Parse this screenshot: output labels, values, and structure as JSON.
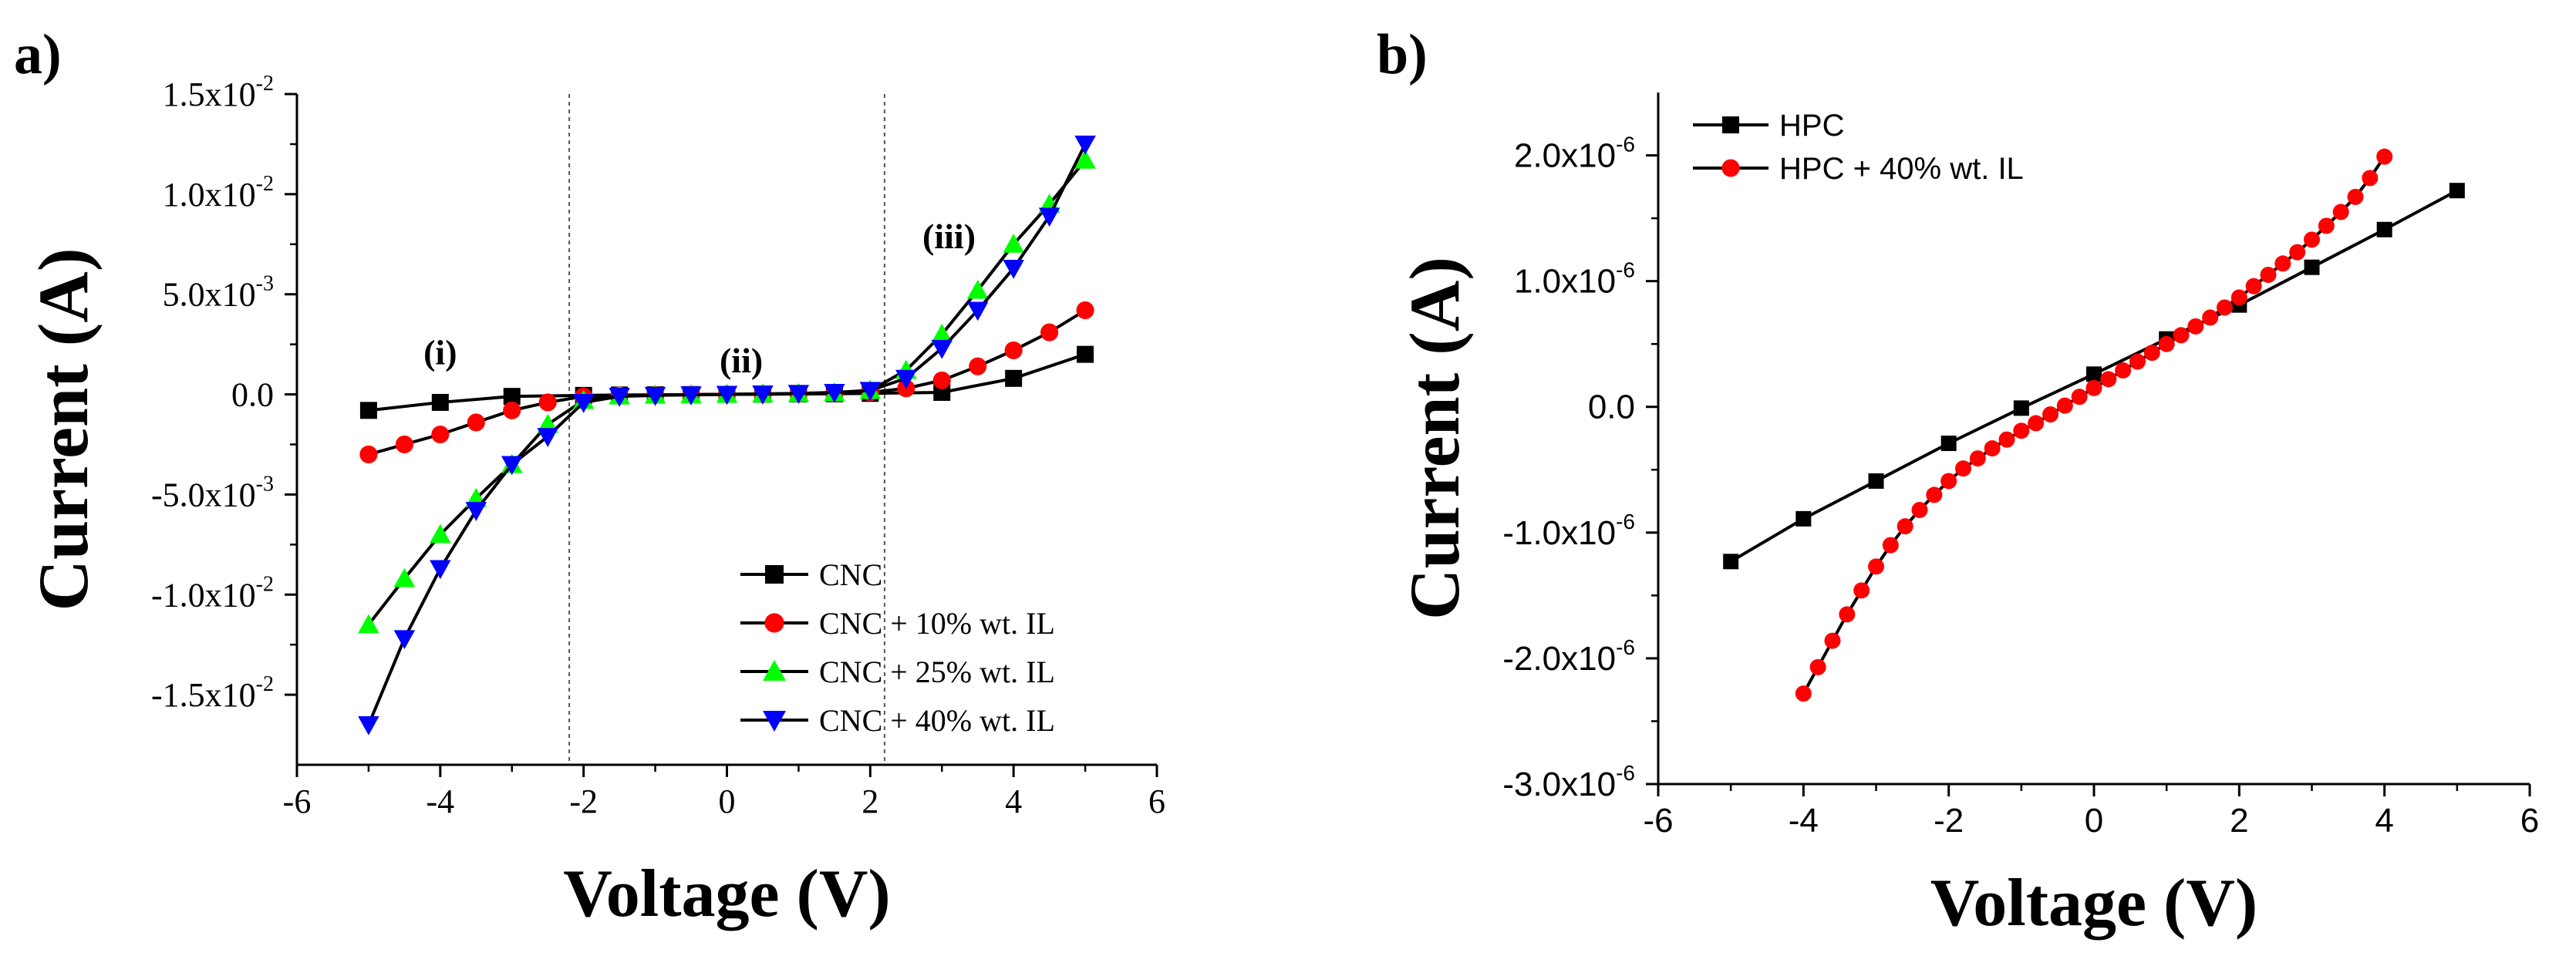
{
  "chart_data": [
    {
      "type": "line",
      "panel_label": "a)",
      "xlabel": "Voltage (V)",
      "ylabel": "Current (A)",
      "xlim": [
        -6,
        6
      ],
      "ylim": [
        -0.0185,
        0.015
      ],
      "xticks": [
        -6,
        -4,
        -2,
        0,
        2,
        4,
        6
      ],
      "xtick_labels": [
        "-6",
        "-4",
        "-2",
        "0",
        "2",
        "4",
        "6"
      ],
      "yticks": [
        -0.015,
        -0.01,
        -0.005,
        0.0,
        0.005,
        0.01,
        0.015
      ],
      "ytick_labels": [
        {
          "base": "-1.5x10",
          "exp": "-2"
        },
        {
          "base": "-1.0x10",
          "exp": "-2"
        },
        {
          "base": "-5.0x10",
          "exp": "-3"
        },
        {
          "base": "0.0",
          "exp": ""
        },
        {
          "base": "5.0x10",
          "exp": "-3"
        },
        {
          "base": "1.0x10",
          "exp": "-2"
        },
        {
          "base": "1.5x10",
          "exp": "-2"
        }
      ],
      "grid": false,
      "legend_position": "bottom-right",
      "vlines": [
        -2.2,
        2.2
      ],
      "annotations": [
        {
          "text": "(i)",
          "x": -4.0,
          "y": 0.0015
        },
        {
          "text": "(ii)",
          "x": 0.2,
          "y": 0.0011
        },
        {
          "text": "(iii)",
          "x": 3.1,
          "y": 0.0073
        }
      ],
      "series": [
        {
          "name": "CNC",
          "color": "#000000",
          "marker": "square",
          "x": [
            -5,
            -4,
            -3,
            -2,
            -1.5,
            -1,
            -0.5,
            0,
            0.5,
            1,
            1.5,
            2,
            3,
            4,
            5
          ],
          "y": [
            -0.0008,
            -0.0004,
            -0.0001,
            -5e-05,
            -3e-05,
            -2e-05,
            -1e-05,
            0,
            1e-05,
            2e-05,
            3e-05,
            5e-05,
            0.0001,
            0.0008,
            0.002
          ]
        },
        {
          "name": "CNC + 10% wt. IL",
          "color": "#ff0000",
          "marker": "circle",
          "x": [
            -5,
            -4.5,
            -4,
            -3.5,
            -3,
            -2.5,
            -2,
            -1.5,
            -1,
            -0.5,
            0,
            0.5,
            1,
            1.5,
            2,
            2.5,
            3,
            3.5,
            4,
            4.5,
            5
          ],
          "y": [
            -0.003,
            -0.0025,
            -0.002,
            -0.0014,
            -0.0008,
            -0.0004,
            -0.0001,
            -5e-05,
            -3e-05,
            -1e-05,
            0,
            1e-05,
            3e-05,
            5e-05,
            0.0001,
            0.0003,
            0.0007,
            0.0014,
            0.0022,
            0.0031,
            0.0042
          ]
        },
        {
          "name": "CNC + 25% wt. IL",
          "color": "#00ff00",
          "marker": "triangle-up",
          "x": [
            -5,
            -4.5,
            -4,
            -3.5,
            -3,
            -2.5,
            -2,
            -1.5,
            -1,
            -0.5,
            0,
            0.5,
            1,
            1.5,
            2,
            2.5,
            3,
            3.5,
            4,
            4.5,
            5
          ],
          "y": [
            -0.0115,
            -0.0092,
            -0.007,
            -0.0052,
            -0.0035,
            -0.0015,
            -0.0003,
            -8e-05,
            -4e-05,
            -2e-05,
            0,
            2e-05,
            4e-05,
            8e-05,
            0.0002,
            0.0012,
            0.003,
            0.0052,
            0.0075,
            0.0095,
            0.0117
          ]
        },
        {
          "name": "CNC + 40% wt. IL",
          "color": "#0000ff",
          "marker": "triangle-down",
          "x": [
            -5,
            -4.5,
            -4,
            -3.5,
            -3,
            -2.5,
            -2,
            -1.5,
            -1,
            -0.5,
            0,
            0.5,
            1,
            1.5,
            2,
            2.5,
            3,
            3.5,
            4,
            4.5,
            5
          ],
          "y": [
            -0.0165,
            -0.0122,
            -0.0087,
            -0.0058,
            -0.0035,
            -0.0021,
            -0.0004,
            -0.0001,
            -5e-05,
            -2e-05,
            0,
            2e-05,
            5e-05,
            0.0001,
            0.0002,
            0.0008,
            0.0023,
            0.0042,
            0.0063,
            0.0089,
            0.0125
          ]
        }
      ]
    },
    {
      "type": "line",
      "panel_label": "b)",
      "xlabel": "Voltage (V)",
      "ylabel": "Current (A)",
      "xlim": [
        -6,
        6
      ],
      "ylim": [
        -3e-06,
        2.5e-06
      ],
      "xticks": [
        -6,
        -4,
        -2,
        0,
        2,
        4,
        6
      ],
      "xtick_labels": [
        "-6",
        "-4",
        "-2",
        "0",
        "2",
        "4",
        "6"
      ],
      "yticks": [
        -3e-06,
        -2e-06,
        -1e-06,
        0.0,
        1e-06,
        2e-06
      ],
      "ytick_labels": [
        {
          "base": "-3.0x10",
          "exp": "-6"
        },
        {
          "base": "-2.0x10",
          "exp": "-6"
        },
        {
          "base": "-1.0x10",
          "exp": "-6"
        },
        {
          "base": "0.0",
          "exp": ""
        },
        {
          "base": "1.0x10",
          "exp": "-6"
        },
        {
          "base": "2.0x10",
          "exp": "-6"
        }
      ],
      "grid": false,
      "legend_position": "top-left",
      "series": [
        {
          "name": "HPC",
          "color": "#000000",
          "marker": "square",
          "x": [
            -5,
            -4,
            -3,
            -2,
            -1,
            0,
            1,
            2,
            3,
            4,
            5
          ],
          "y": [
            -1.23e-06,
            -8.9e-07,
            -5.9e-07,
            -2.9e-07,
            -1e-08,
            2.6e-07,
            5.4e-07,
            8.1e-07,
            1.11e-06,
            1.41e-06,
            1.72e-06
          ]
        },
        {
          "name": "HPC + 40% wt. IL",
          "color": "#ff0000",
          "marker": "circle",
          "x": [
            -4.0,
            -3.8,
            -3.6,
            -3.4,
            -3.2,
            -3.0,
            -2.8,
            -2.6,
            -2.4,
            -2.2,
            -2.0,
            -1.8,
            -1.6,
            -1.4,
            -1.2,
            -1.0,
            -0.8,
            -0.6,
            -0.4,
            -0.2,
            0.0,
            0.2,
            0.4,
            0.6,
            0.8,
            1.0,
            1.2,
            1.4,
            1.6,
            1.8,
            2.0,
            2.2,
            2.4,
            2.6,
            2.8,
            3.0,
            3.2,
            3.4,
            3.6,
            3.8,
            4.0
          ],
          "y": [
            -2.28e-06,
            -2.07e-06,
            -1.86e-06,
            -1.65e-06,
            -1.46e-06,
            -1.27e-06,
            -1.1e-06,
            -9.5e-07,
            -8.2e-07,
            -7e-07,
            -5.9e-07,
            -4.9e-07,
            -4.1e-07,
            -3.3e-07,
            -2.6e-07,
            -1.9e-07,
            -1.3e-07,
            -6e-08,
            1e-08,
            8e-08,
            1.5e-07,
            2.2e-07,
            2.9e-07,
            3.6e-07,
            4.3e-07,
            5e-07,
            5.7e-07,
            6.4e-07,
            7.1e-07,
            7.9e-07,
            8.7e-07,
            9.6e-07,
            1.05e-06,
            1.14e-06,
            1.23e-06,
            1.33e-06,
            1.44e-06,
            1.55e-06,
            1.67e-06,
            1.82e-06,
            1.99e-06
          ]
        }
      ]
    }
  ]
}
